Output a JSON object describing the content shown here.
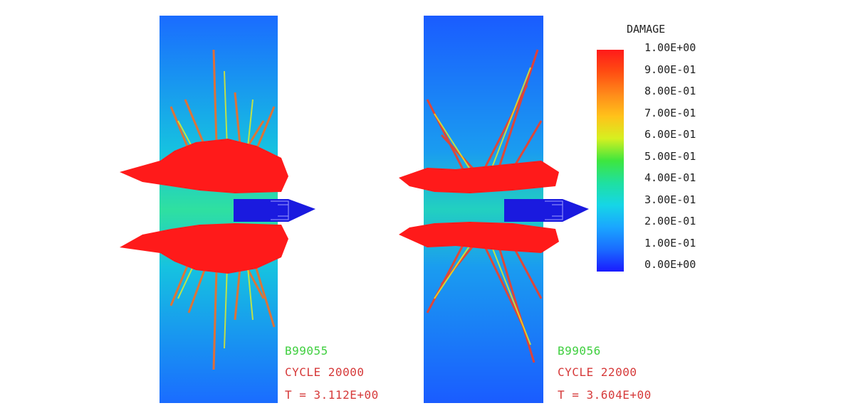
{
  "legend": {
    "title": "DAMAGE",
    "ticks": [
      "1.00E+00",
      "9.00E-01",
      "8.00E-01",
      "7.00E-01",
      "6.00E-01",
      "5.00E-01",
      "4.00E-01",
      "3.00E-01",
      "2.00E-01",
      "1.00E-01",
      "0.00E+00"
    ],
    "colors": {
      "max": "#ff1a1a",
      "mid": "#3ee63e",
      "min": "#1a1aff"
    }
  },
  "panels": [
    {
      "run_id": "B99055",
      "cycle": "CYCLE 20000",
      "time": "T = 3.112E+00"
    },
    {
      "run_id": "B99056",
      "cycle": "CYCLE 22000",
      "time": "T = 3.604E+00"
    }
  ]
}
